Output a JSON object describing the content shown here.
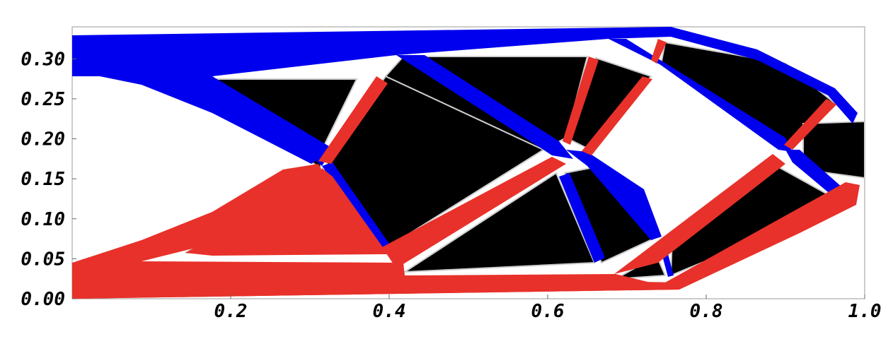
{
  "chart_data": {
    "type": "diagram",
    "x_ticks": [
      "0.2",
      "0.4",
      "0.6",
      "0.8",
      "1.0"
    ],
    "y_ticks": [
      "0.00",
      "0.05",
      "0.10",
      "0.15",
      "0.20",
      "0.25",
      "0.30"
    ],
    "xlim": [
      0.0,
      1.0
    ],
    "ylim": [
      0.0,
      0.34
    ],
    "grid": false,
    "legend": "none"
  },
  "colors": {
    "tension": "#0000ee",
    "compression": "#e8312a",
    "void": "#000000",
    "background": "#ffffff",
    "frame": "#999999"
  }
}
